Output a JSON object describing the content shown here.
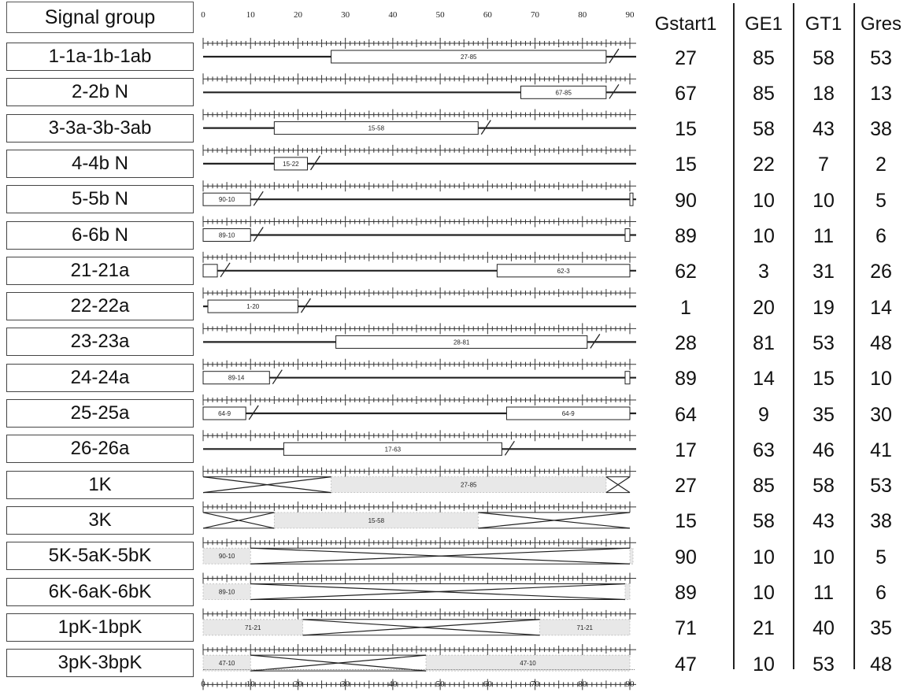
{
  "header": {
    "group_label": "Signal group",
    "columns": [
      "Gstart1",
      "GE1",
      "GT1",
      "Gres"
    ]
  },
  "axis": {
    "min": 0,
    "max": 90,
    "top_tick_labels": [
      "0",
      "10",
      "20",
      "30",
      "40",
      "50",
      "60",
      "70",
      "80",
      "90"
    ],
    "bottom_tick_labels": [
      "0",
      "10",
      "20",
      "30",
      "40",
      "50",
      "60",
      "70",
      "80",
      "90"
    ]
  },
  "rows": [
    {
      "group": "1-1a-1b-1ab",
      "style": "bar",
      "gstart": 27,
      "ge": 85,
      "gt": 58,
      "gres": 53,
      "bar_label": "27-85"
    },
    {
      "group": "2-2b N",
      "style": "bar",
      "gstart": 67,
      "ge": 85,
      "gt": 18,
      "gres": 13,
      "bar_label": "67-85"
    },
    {
      "group": "3-3a-3b-3ab",
      "style": "bar",
      "gstart": 15,
      "ge": 58,
      "gt": 43,
      "gres": 38,
      "bar_label": "15-58"
    },
    {
      "group": "4-4b N",
      "style": "bar",
      "gstart": 15,
      "ge": 22,
      "gt": 7,
      "gres": 2,
      "bar_label": "15-22"
    },
    {
      "group": "5-5b N",
      "style": "bar",
      "gstart": 90,
      "ge": 10,
      "gt": 10,
      "gres": 5,
      "bar_label": "90-10"
    },
    {
      "group": "6-6b N",
      "style": "bar",
      "gstart": 89,
      "ge": 10,
      "gt": 11,
      "gres": 6,
      "bar_label": "89-10"
    },
    {
      "group": "21-21a",
      "style": "bar",
      "gstart": 62,
      "ge": 3,
      "gt": 31,
      "gres": 26,
      "bar_label": "62-3"
    },
    {
      "group": "22-22a",
      "style": "bar",
      "gstart": 1,
      "ge": 20,
      "gt": 19,
      "gres": 14,
      "bar_label": "1-20"
    },
    {
      "group": "23-23a",
      "style": "bar",
      "gstart": 28,
      "ge": 81,
      "gt": 53,
      "gres": 48,
      "bar_label": "28-81"
    },
    {
      "group": "24-24a",
      "style": "bar",
      "gstart": 89,
      "ge": 14,
      "gt": 15,
      "gres": 10,
      "bar_label": "89-14"
    },
    {
      "group": "25-25a",
      "style": "bar",
      "gstart": 64,
      "ge": 9,
      "gt": 35,
      "gres": 30,
      "bar_label": "64-9"
    },
    {
      "group": "26-26a",
      "style": "bar",
      "gstart": 17,
      "ge": 63,
      "gt": 46,
      "gres": 41,
      "bar_label": "17-63"
    },
    {
      "group": "1K",
      "style": "ped",
      "gstart": 27,
      "ge": 85,
      "gt": 58,
      "gres": 53,
      "bar_label": "27-85"
    },
    {
      "group": "3K",
      "style": "ped",
      "gstart": 15,
      "ge": 58,
      "gt": 43,
      "gres": 38,
      "bar_label": "15-58"
    },
    {
      "group": "5K-5aK-5bK",
      "style": "ped",
      "gstart": 90,
      "ge": 10,
      "gt": 10,
      "gres": 5,
      "bar_label": "90-10"
    },
    {
      "group": "6K-6aK-6bK",
      "style": "ped",
      "gstart": 89,
      "ge": 10,
      "gt": 11,
      "gres": 6,
      "bar_label": "89-10"
    },
    {
      "group": "1pK-1bpK",
      "style": "ped",
      "gstart": 71,
      "ge": 21,
      "gt": 40,
      "gres": 35,
      "bar_label": "71-21"
    },
    {
      "group": "3pK-3bpK",
      "style": "ped",
      "gstart": 47,
      "ge": 10,
      "gt": 53,
      "gres": 48,
      "bar_label": "47-10"
    }
  ]
}
